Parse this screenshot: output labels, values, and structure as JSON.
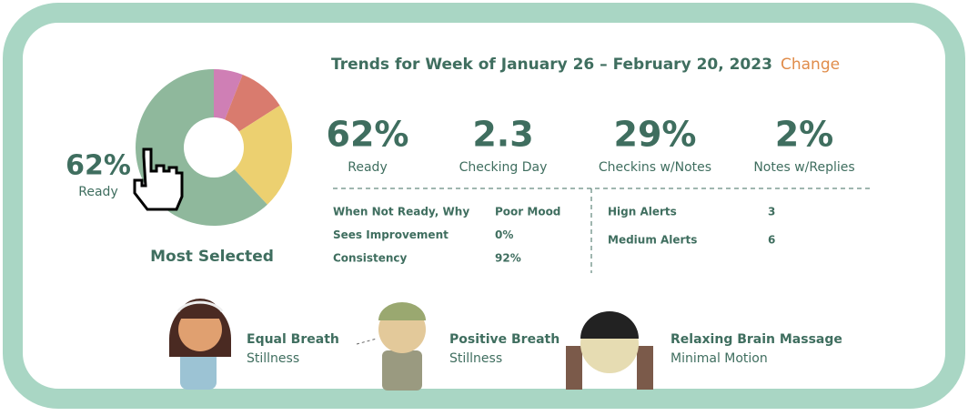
{
  "header": {
    "title": "Trends for Week of January 26 – February 20, 2023",
    "action": "Change"
  },
  "donut": {
    "segments": [
      {
        "value": 6,
        "color": "#cf7fb5"
      },
      {
        "value": 10,
        "color": "#d97b6e"
      },
      {
        "value": 22,
        "color": "#ecd070"
      },
      {
        "value": 62,
        "color": "#8fb89c"
      }
    ],
    "center_value": "62%",
    "center_label": "Ready",
    "caption": "Most Selected"
  },
  "stats": [
    {
      "value": "62%",
      "label": "Ready"
    },
    {
      "value": "2.3",
      "label": "Checking Day"
    },
    {
      "value": "29%",
      "label": "Checkins w/Notes"
    },
    {
      "value": "2%",
      "label": "Notes w/Replies"
    }
  ],
  "details_left": [
    [
      "When Not Ready, Why",
      "Poor Mood"
    ],
    [
      "Sees Improvement",
      "0%"
    ],
    [
      "Consistency",
      "92%"
    ]
  ],
  "details_right": [
    [
      "Hign Alerts",
      "3"
    ],
    [
      "Medium Alerts",
      "6"
    ]
  ],
  "exercises": [
    {
      "title": "Equal Breath",
      "subtitle": "Stillness"
    },
    {
      "title": "Positive Breath",
      "subtitle": "Stillness"
    },
    {
      "title": "Relaxing Brain Massage",
      "subtitle": "Minimal Motion"
    }
  ]
}
